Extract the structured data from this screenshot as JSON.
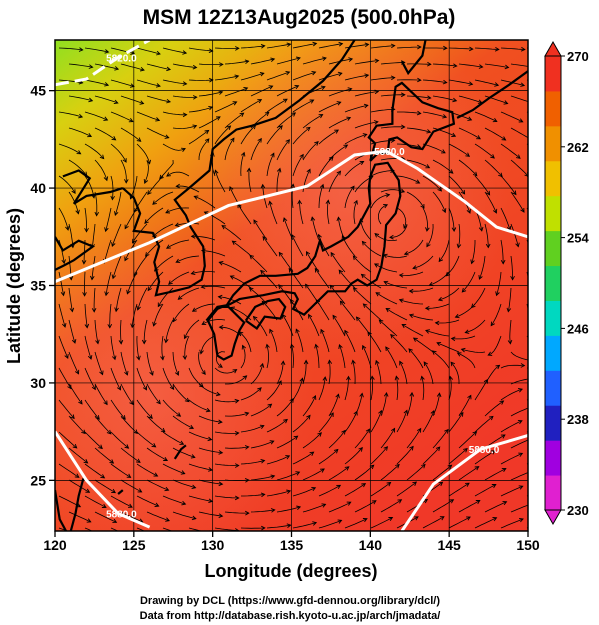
{
  "title": "MSM 12Z13Aug2025 (500.0hPa)",
  "xlabel": "Longitude (degrees)",
  "ylabel": "Latitude  (degrees)",
  "x_ticks": [
    "120",
    "125",
    "130",
    "135",
    "140",
    "145",
    "150"
  ],
  "y_ticks": [
    "25",
    "30",
    "35",
    "40",
    "45"
  ],
  "colorbar": {
    "ticks": [
      "270",
      "262",
      "254",
      "246",
      "238",
      "230"
    ],
    "min": 230,
    "max": 270,
    "colors": [
      "#e020d0",
      "#a000e0",
      "#2020c0",
      "#2060ff",
      "#00a8ff",
      "#00d8c0",
      "#20d060",
      "#60d020",
      "#c0e000",
      "#f0c000",
      "#f09000",
      "#f06000",
      "#f03020"
    ]
  },
  "contour_labels": [
    "5820.0",
    "5880.0",
    "5880.0",
    "5880.0"
  ],
  "credits": [
    "Drawing by DCL (https://www.gfd-dennou.org/library/dcl/)",
    "Data from http://database.rish.kyoto-u.ac.jp/arch/jmadata/"
  ],
  "chart_data": {
    "type": "heatmap",
    "title": "MSM 12Z13Aug2025 (500.0hPa)",
    "xlabel": "Longitude (degrees)",
    "ylabel": "Latitude  (degrees)",
    "xlim": [
      120,
      150
    ],
    "ylim": [
      22.4,
      47.6
    ],
    "color_range": [
      230,
      270
    ],
    "field_samples": [
      {
        "lon": 121,
        "lat": 46.5,
        "value": 258
      },
      {
        "lon": 125,
        "lat": 45,
        "value": 262
      },
      {
        "lon": 140,
        "lat": 46,
        "value": 264
      },
      {
        "lon": 130,
        "lat": 40,
        "value": 267
      },
      {
        "lon": 141,
        "lat": 38,
        "value": 269
      },
      {
        "lon": 131,
        "lat": 30,
        "value": 269
      },
      {
        "lon": 145,
        "lat": 30,
        "value": 268
      },
      {
        "lon": 140,
        "lat": 24,
        "value": 267
      }
    ],
    "contours": [
      {
        "label": "5820.0",
        "points": [
          [
            120,
            45.3
          ],
          [
            122,
            45.6
          ],
          [
            124,
            46.7
          ],
          [
            126,
            47.6
          ]
        ]
      },
      {
        "label": "5880.0",
        "points": [
          [
            120,
            35.2
          ],
          [
            126,
            37.2
          ],
          [
            131,
            39.1
          ],
          [
            136,
            40.1
          ],
          [
            139,
            41.7
          ],
          [
            141,
            41.9
          ],
          [
            143,
            41.0
          ],
          [
            146,
            39.3
          ],
          [
            148,
            38.0
          ],
          [
            150,
            37.5
          ]
        ]
      },
      {
        "label": "5880.0",
        "points": [
          [
            120,
            27.5
          ],
          [
            122,
            25.0
          ],
          [
            124,
            23.3
          ],
          [
            126,
            22.6
          ]
        ]
      },
      {
        "label": "5880.0",
        "points": [
          [
            142,
            22.4
          ],
          [
            144,
            24.8
          ],
          [
            147,
            26.6
          ],
          [
            150,
            27.3
          ]
        ]
      }
    ],
    "grid": true,
    "vector_field": "wind streamlines"
  }
}
